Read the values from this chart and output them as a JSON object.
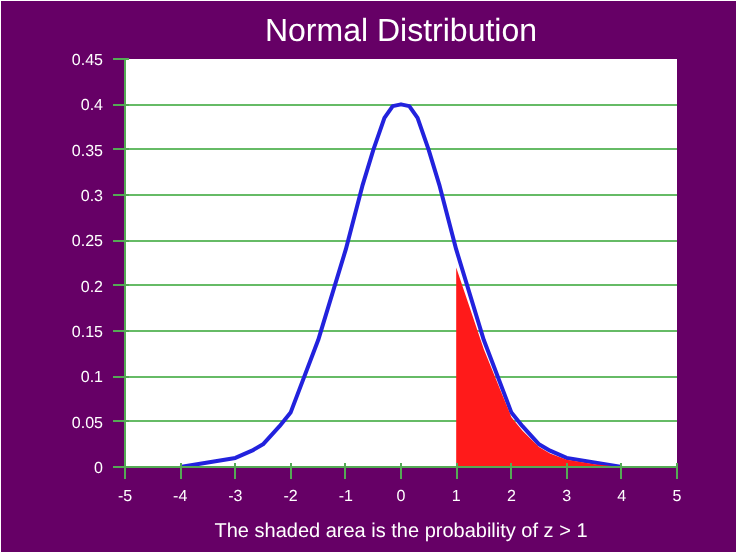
{
  "chart_data": {
    "type": "line",
    "title": "Normal Distribution",
    "xlim": [
      -5,
      5
    ],
    "ylim": [
      0,
      0.45
    ],
    "xticks": [
      -5,
      -4,
      -3,
      -2,
      -1,
      0,
      1,
      2,
      3,
      4,
      5
    ],
    "yticks": [
      0,
      0.05,
      0.1,
      0.15,
      0.2,
      0.25,
      0.3,
      0.35,
      0.4,
      0.45
    ],
    "grid": "y",
    "series": [
      {
        "color": "#2222dd",
        "x": [
          -4,
          -3.5,
          -3,
          -2.7,
          -2.5,
          -2.2,
          -2,
          -1.5,
          -1,
          -0.7,
          -0.5,
          -0.3,
          -0.15,
          0,
          0.15,
          0.3,
          0.5,
          0.7,
          1,
          1.5,
          2,
          2.2,
          2.5,
          2.7,
          3,
          3.5,
          4
        ],
        "values": [
          0,
          0.005,
          0.01,
          0.018,
          0.025,
          0.045,
          0.06,
          0.14,
          0.24,
          0.31,
          0.35,
          0.385,
          0.398,
          0.4,
          0.398,
          0.385,
          0.35,
          0.31,
          0.24,
          0.14,
          0.06,
          0.045,
          0.025,
          0.018,
          0.01,
          0.005,
          0
        ]
      },
      {
        "type": "area",
        "color": "#ff1a1a",
        "x": [
          1,
          1.5,
          2,
          2.2,
          2.5,
          2.7,
          3,
          3.5,
          4
        ],
        "values": [
          0.22,
          0.13,
          0.055,
          0.04,
          0.022,
          0.015,
          0.008,
          0.003,
          0
        ]
      }
    ],
    "annotations": [
      "The shaded area is the probability of z > 1"
    ]
  }
}
